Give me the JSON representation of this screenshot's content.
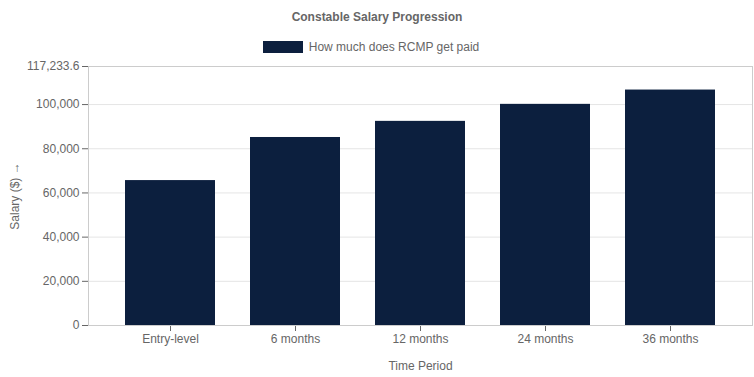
{
  "chart_data": {
    "type": "bar",
    "title": "Constable Salary Progression",
    "x_label": "Time Period",
    "y_label": "Salary ($)",
    "categories": [
      "Entry-level",
      "6 months",
      "12 months",
      "24 months",
      "36 months"
    ],
    "series": [
      {
        "name": "How much does RCMP get paid",
        "color": "#0c1f3e",
        "values": [
          65600,
          85100,
          92400,
          100100,
          106576
        ]
      }
    ],
    "ylim": [
      0,
      117233.6
    ],
    "yticks": [
      0,
      {
        "value": 20000,
        "label": "20,000"
      },
      {
        "value": 40000,
        "label": "40,000"
      },
      {
        "value": 60000,
        "label": "60,000"
      },
      {
        "value": 80000,
        "label": "80,000"
      },
      {
        "value": 100000,
        "label": "100,000"
      },
      {
        "value": 117233.6,
        "label": "117,233.6"
      }
    ],
    "grid": true,
    "legend": "top"
  }
}
